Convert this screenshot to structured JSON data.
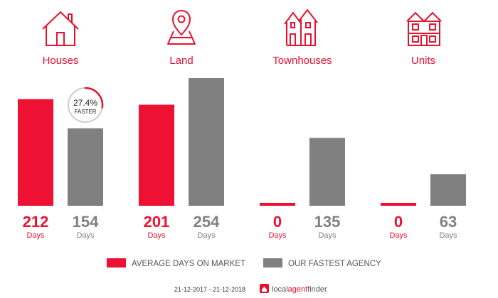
{
  "chart_data": {
    "type": "bar",
    "categories": [
      "Houses",
      "Land",
      "Townhouses",
      "Units"
    ],
    "unit_label": "Days",
    "ylim": [
      0,
      254
    ],
    "series": [
      {
        "name": "AVERAGE DAYS ON MARKET",
        "color": "#ee1133",
        "values": [
          212,
          201,
          0,
          0
        ]
      },
      {
        "name": "OUR FASTEST AGENCY",
        "color": "#808080",
        "values": [
          154,
          254,
          135,
          63
        ]
      }
    ],
    "annotation": {
      "category": "Houses",
      "value": "27.4%",
      "label": "FASTER",
      "fraction": 0.274
    },
    "grid": false,
    "legend_position": "bottom-center"
  },
  "icons": [
    "house-icon",
    "map-pin-icon",
    "townhouses-icon",
    "units-icon"
  ],
  "footer": {
    "date_range": "21-12-2017 - 21-12-2018",
    "brand_local": "local",
    "brand_agent": "agent",
    "brand_finder": "finder"
  }
}
